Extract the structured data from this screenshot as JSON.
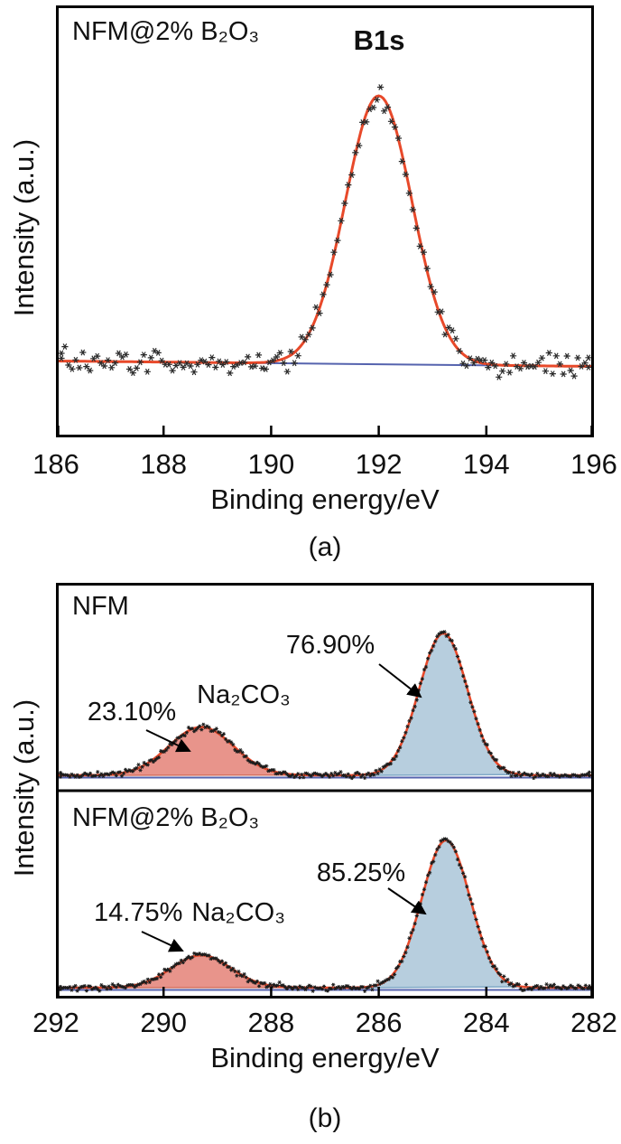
{
  "figure": {
    "caption_a": "(a)",
    "caption_b": "(b)"
  },
  "chart_data": [
    {
      "id": "panel-a",
      "type": "scatter",
      "sample_label": "NFM@2% B₂O₃",
      "peak_label": "B1s",
      "xlabel": "Binding energy/eV",
      "ylabel": "Intensity (a.u.)",
      "xlim": [
        186,
        196
      ],
      "x_reversed": false,
      "xticks": [
        "186",
        "188",
        "190",
        "192",
        "194",
        "196"
      ],
      "series": [
        {
          "name": "raw-data",
          "style": "scatter-asterisk",
          "color": "#2b2b2b"
        },
        {
          "name": "fit",
          "style": "line",
          "color": "#e8492a"
        },
        {
          "name": "baseline",
          "style": "line",
          "color": "#5563ae"
        }
      ],
      "fit_peak": {
        "label": "B1s",
        "center_eV": 192.0,
        "sigma_eV": 0.62,
        "amp_rel": 1.0
      }
    },
    {
      "id": "panel-b",
      "type": "scatter",
      "xlabel": "Binding energy/eV",
      "ylabel": "Intensity (a.u.)",
      "xlim": [
        282,
        292
      ],
      "x_reversed": true,
      "xticks": [
        "292",
        "290",
        "288",
        "286",
        "284",
        "282"
      ],
      "colors": {
        "envelope": "#e8492a",
        "baseline": "#5563ae",
        "marker": "#1c1c1c"
      },
      "subpanels": [
        {
          "label": "NFM",
          "peaks": [
            {
              "percent": "76.90%",
              "center_eV": 284.8,
              "sigma_eV": 0.45,
              "amp_rel": 1.0,
              "fill": "#b7cede",
              "stroke": "#7fa8c6"
            },
            {
              "percent": "23.10%",
              "species": "Na₂CO₃",
              "center_eV": 289.3,
              "sigma_eV": 0.6,
              "amp_rel": 0.34,
              "fill": "#e8948b",
              "stroke": "#d4705f"
            }
          ]
        },
        {
          "label": "NFM@2% B₂O₃",
          "peaks": [
            {
              "percent": "85.25%",
              "center_eV": 284.75,
              "sigma_eV": 0.45,
              "amp_rel": 1.0,
              "fill": "#b7cede",
              "stroke": "#7fa8c6"
            },
            {
              "percent": "14.75%",
              "species": "Na₂CO₃",
              "center_eV": 289.3,
              "sigma_eV": 0.55,
              "amp_rel": 0.22,
              "fill": "#e8948b",
              "stroke": "#d4705f"
            }
          ]
        }
      ]
    }
  ]
}
